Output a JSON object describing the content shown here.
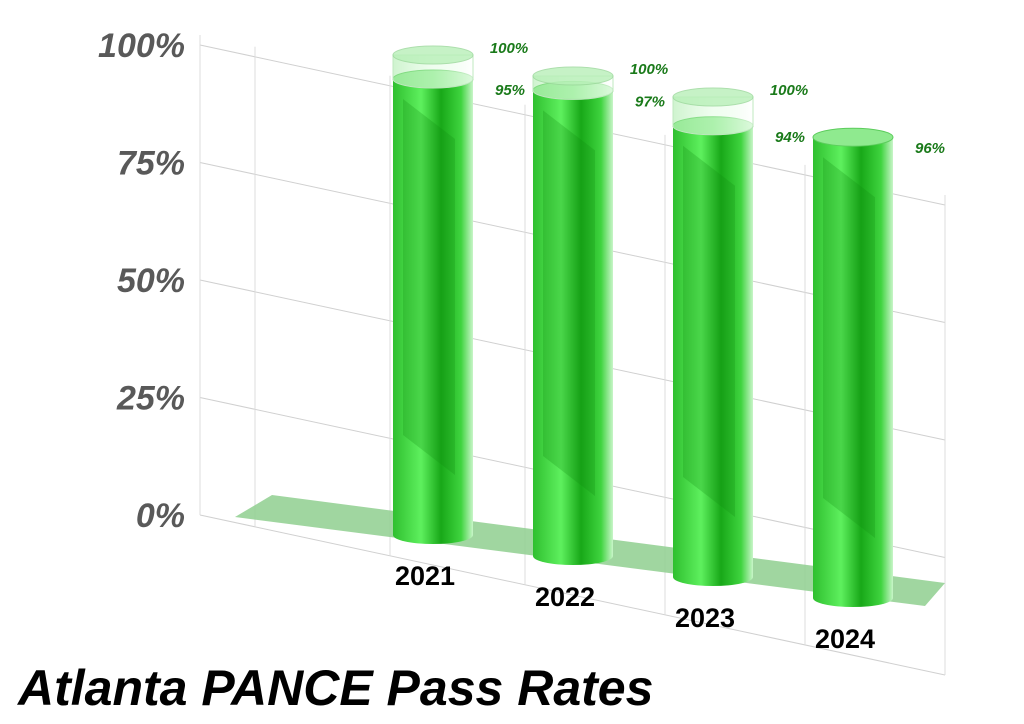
{
  "chart_data": {
    "type": "bar",
    "style": "3d-cylinder",
    "title": "Atlanta PANCE Pass Rates",
    "categories": [
      "2021",
      "2022",
      "2023",
      "2024"
    ],
    "series": [
      {
        "values": [
          100,
          100,
          100,
          null
        ]
      },
      {
        "values": [
          95,
          97,
          94,
          96
        ]
      }
    ],
    "value_labels": {
      "outer": [
        "100%",
        "100%",
        "100%",
        ""
      ],
      "inner": [
        "95%",
        "97%",
        "94%",
        "96%"
      ]
    },
    "ylim": [
      0,
      100
    ],
    "yticks": [
      "0%",
      "25%",
      "50%",
      "75%",
      "100%"
    ],
    "grid": true,
    "legend": "none",
    "colors": {
      "bar": "#3fd43f",
      "bar_dark": "#0f8a0f",
      "floor": "#8fcf8f",
      "label": "#1a7a1a"
    }
  }
}
